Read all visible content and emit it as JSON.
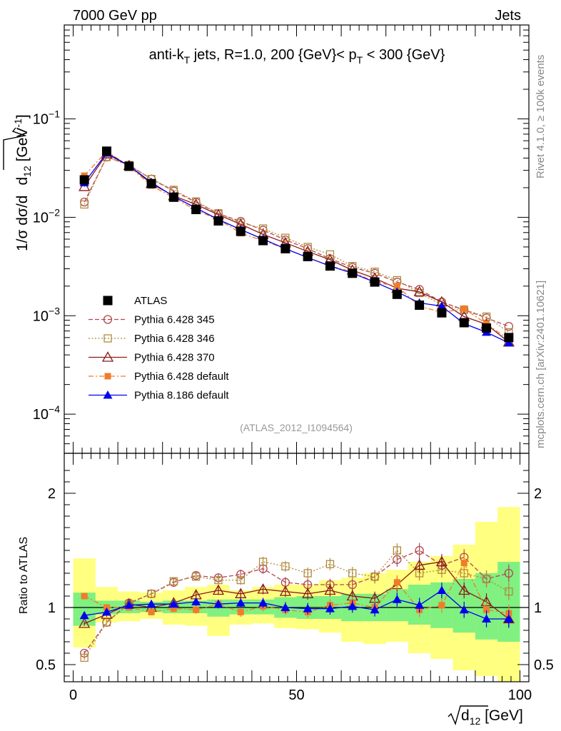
{
  "header": {
    "left": "7000 GeV pp",
    "right": "Jets"
  },
  "side_labels": {
    "rivet": "Rivet 4.1.0, ≥ 100k events",
    "mcplots": "mcplots.cern.ch [arXiv:2401.10621]"
  },
  "colors": {
    "atlas": "#000000",
    "p345": "#b2474f",
    "p346": "#b08a3c",
    "p370": "#8b1a1a",
    "p6def": "#f07c2a",
    "p8def": "#0000ee",
    "band_yellow": "#ffff80",
    "band_green": "#80f080"
  },
  "chart_data": [
    {
      "type": "line",
      "name": "main",
      "title": "anti-kT jets, R=1.0, 200 {GeV}< pT < 300 {GeV}",
      "title_parts": {
        "pre": "anti-k",
        "sub1": "T",
        "mid": " jets, R=1.0, 200 {GeV}< p",
        "sub2": "T",
        "post": " < 300 {GeV}"
      },
      "ylabel": "1/σ dσ/d√d12 [GeV⁻¹]",
      "ylabel_parts": {
        "a": "1/σ dσ/d",
        "d": "d",
        "sub": "12",
        "b": " [GeV",
        "sup": "-1",
        "c": "]"
      },
      "yscale": "log",
      "ylim": [
        4e-05,
        0.9
      ],
      "xlim": [
        -2,
        102
      ],
      "yticks": [
        {
          "value": 0.1,
          "mant": "10",
          "exp": "−1"
        },
        {
          "value": 0.01,
          "mant": "10",
          "exp": "−2"
        },
        {
          "value": 0.001,
          "mant": "10",
          "exp": "−3"
        },
        {
          "value": 0.0001,
          "mant": "10",
          "exp": "−4"
        }
      ],
      "analysis_tag": "(ATLAS_2012_I1094564)",
      "legend_position": "lower-left",
      "x": [
        2.5,
        7.5,
        12.5,
        17.5,
        22.5,
        27.5,
        32.5,
        37.5,
        42.5,
        47.5,
        52.5,
        57.5,
        62.5,
        67.5,
        72.5,
        77.5,
        82.5,
        87.5,
        92.5,
        97.5
      ],
      "series": [
        {
          "key": "atlas",
          "name": "ATLAS",
          "style": "points",
          "marker": "filled-square",
          "values": [
            0.024,
            0.047,
            0.033,
            0.022,
            0.016,
            0.012,
            0.0092,
            0.0072,
            0.0058,
            0.0048,
            0.004,
            0.0032,
            0.0027,
            0.0022,
            0.00165,
            0.00128,
            0.00107,
            0.00085,
            0.00075,
            0.0006
          ]
        },
        {
          "key": "p345",
          "name": "Pythia 6.428 345",
          "style": "dashed",
          "marker": "open-circle",
          "values": [
            0.0143,
            0.041,
            0.034,
            0.0245,
            0.0185,
            0.0142,
            0.0109,
            0.0091,
            0.0074,
            0.0059,
            0.0048,
            0.0038,
            0.0031,
            0.0027,
            0.0022,
            0.00185,
            0.00138,
            0.00115,
            0.00095,
            0.00078
          ]
        },
        {
          "key": "p346",
          "name": "Pythia 6.428 346",
          "style": "dotted",
          "marker": "open-square",
          "values": [
            0.0135,
            0.041,
            0.034,
            0.0245,
            0.019,
            0.0145,
            0.011,
            0.0088,
            0.0077,
            0.0062,
            0.005,
            0.0042,
            0.0032,
            0.0028,
            0.0023,
            0.0017,
            0.0013,
            0.00115,
            0.00098,
            0.00068
          ]
        },
        {
          "key": "p370",
          "name": "Pythia 6.428 370",
          "style": "solid",
          "marker": "open-triangle",
          "values": [
            0.0205,
            0.044,
            0.0335,
            0.022,
            0.0165,
            0.0135,
            0.0106,
            0.0085,
            0.0067,
            0.0055,
            0.0045,
            0.0037,
            0.0029,
            0.0024,
            0.0019,
            0.00175,
            0.00138,
            0.00098,
            0.00082,
            0.00054
          ]
        },
        {
          "key": "p6def",
          "name": "Pythia 6.428 default",
          "style": "dashdot",
          "marker": "filled-square-small",
          "values": [
            0.0265,
            0.047,
            0.033,
            0.021,
            0.0158,
            0.0118,
            0.0095,
            0.0069,
            0.0058,
            0.0048,
            0.0039,
            0.0032,
            0.0028,
            0.0022,
            0.002,
            0.00125,
            0.00108,
            0.00118,
            0.00083,
            0.00057
          ]
        },
        {
          "key": "p8def",
          "name": "Pythia 8.186 default",
          "style": "solid",
          "marker": "filled-triangle",
          "values": [
            0.0225,
            0.045,
            0.0335,
            0.0226,
            0.0163,
            0.0124,
            0.0095,
            0.0075,
            0.006,
            0.0048,
            0.0039,
            0.0032,
            0.0027,
            0.0022,
            0.00175,
            0.00135,
            0.00125,
            0.00083,
            0.00068,
            0.00053
          ]
        }
      ]
    },
    {
      "type": "line",
      "name": "ratio",
      "ylabel": "Ratio to ATLAS",
      "xlabel": "√d12 [GeV]",
      "xlabel_parts": {
        "d": "d",
        "sub": "12",
        "unit": " [GeV]"
      },
      "ylim": [
        0.35,
        2.35
      ],
      "xlim": [
        -2,
        102
      ],
      "yticks": [
        0.5,
        1,
        2
      ],
      "ytick_labels": [
        "0.5",
        "1",
        "2"
      ],
      "xticks": [
        0,
        50,
        100
      ],
      "xtick_labels": [
        "0",
        "50",
        "100"
      ],
      "x": [
        2.5,
        7.5,
        12.5,
        17.5,
        22.5,
        27.5,
        32.5,
        37.5,
        42.5,
        47.5,
        52.5,
        57.5,
        62.5,
        67.5,
        72.5,
        77.5,
        82.5,
        87.5,
        92.5,
        97.5
      ],
      "band_yellow": [
        [
          0.65,
          1.43
        ],
        [
          0.87,
          1.18
        ],
        [
          0.88,
          1.14
        ],
        [
          0.9,
          1.13
        ],
        [
          0.85,
          1.15
        ],
        [
          0.84,
          1.18
        ],
        [
          0.75,
          1.2
        ],
        [
          0.85,
          1.15
        ],
        [
          0.86,
          1.18
        ],
        [
          0.82,
          1.2
        ],
        [
          0.81,
          1.2
        ],
        [
          0.78,
          1.24
        ],
        [
          0.7,
          1.26
        ],
        [
          0.68,
          1.3
        ],
        [
          0.7,
          1.33
        ],
        [
          0.6,
          1.4
        ],
        [
          0.55,
          1.45
        ],
        [
          0.45,
          1.55
        ],
        [
          0.4,
          1.75
        ],
        [
          0.35,
          1.88
        ]
      ],
      "band_green": [
        [
          0.84,
          1.13
        ],
        [
          0.94,
          1.06
        ],
        [
          0.95,
          1.06
        ],
        [
          0.96,
          1.05
        ],
        [
          0.95,
          1.06
        ],
        [
          0.95,
          1.06
        ],
        [
          0.92,
          1.07
        ],
        [
          0.94,
          1.07
        ],
        [
          0.94,
          1.07
        ],
        [
          0.91,
          1.09
        ],
        [
          0.9,
          1.1
        ],
        [
          0.9,
          1.1
        ],
        [
          0.88,
          1.12
        ],
        [
          0.88,
          1.12
        ],
        [
          0.88,
          1.16
        ],
        [
          0.85,
          1.2
        ],
        [
          0.82,
          1.22
        ],
        [
          0.78,
          1.25
        ],
        [
          0.72,
          1.3
        ],
        [
          0.7,
          1.4
        ]
      ],
      "series": [
        {
          "key": "p345",
          "values": [
            0.6,
            0.87,
            1.04,
            1.12,
            1.22,
            1.28,
            1.26,
            1.29,
            1.34,
            1.22,
            1.2,
            1.2,
            1.2,
            1.27,
            1.42,
            1.5,
            1.37,
            1.44,
            1.25,
            1.3
          ]
        },
        {
          "key": "p346",
          "values": [
            0.56,
            0.87,
            1.03,
            1.12,
            1.23,
            1.27,
            1.24,
            1.24,
            1.4,
            1.36,
            1.3,
            1.38,
            1.3,
            1.27,
            1.5,
            1.3,
            1.33,
            1.3,
            1.25,
            1.14
          ]
        },
        {
          "key": "p370",
          "values": [
            0.86,
            0.94,
            1.03,
            1.0,
            1.04,
            1.11,
            1.15,
            1.12,
            1.16,
            1.14,
            1.12,
            1.15,
            1.1,
            1.08,
            1.2,
            1.37,
            1.4,
            1.15,
            1.05,
            0.9
          ]
        },
        {
          "key": "p6def",
          "values": [
            1.1,
            1.0,
            1.0,
            0.96,
            0.99,
            0.98,
            1.03,
            0.96,
            1.01,
            0.98,
            0.96,
            1.02,
            1.04,
            1.0,
            1.22,
            0.98,
            1.02,
            1.39,
            0.98,
            0.95
          ]
        },
        {
          "key": "p8def",
          "values": [
            0.93,
            0.96,
            1.02,
            1.03,
            1.03,
            1.05,
            1.03,
            1.04,
            1.04,
            1.0,
            0.99,
            0.99,
            1.01,
            0.98,
            1.07,
            1.02,
            1.15,
            0.98,
            0.9,
            0.9
          ]
        }
      ]
    }
  ]
}
